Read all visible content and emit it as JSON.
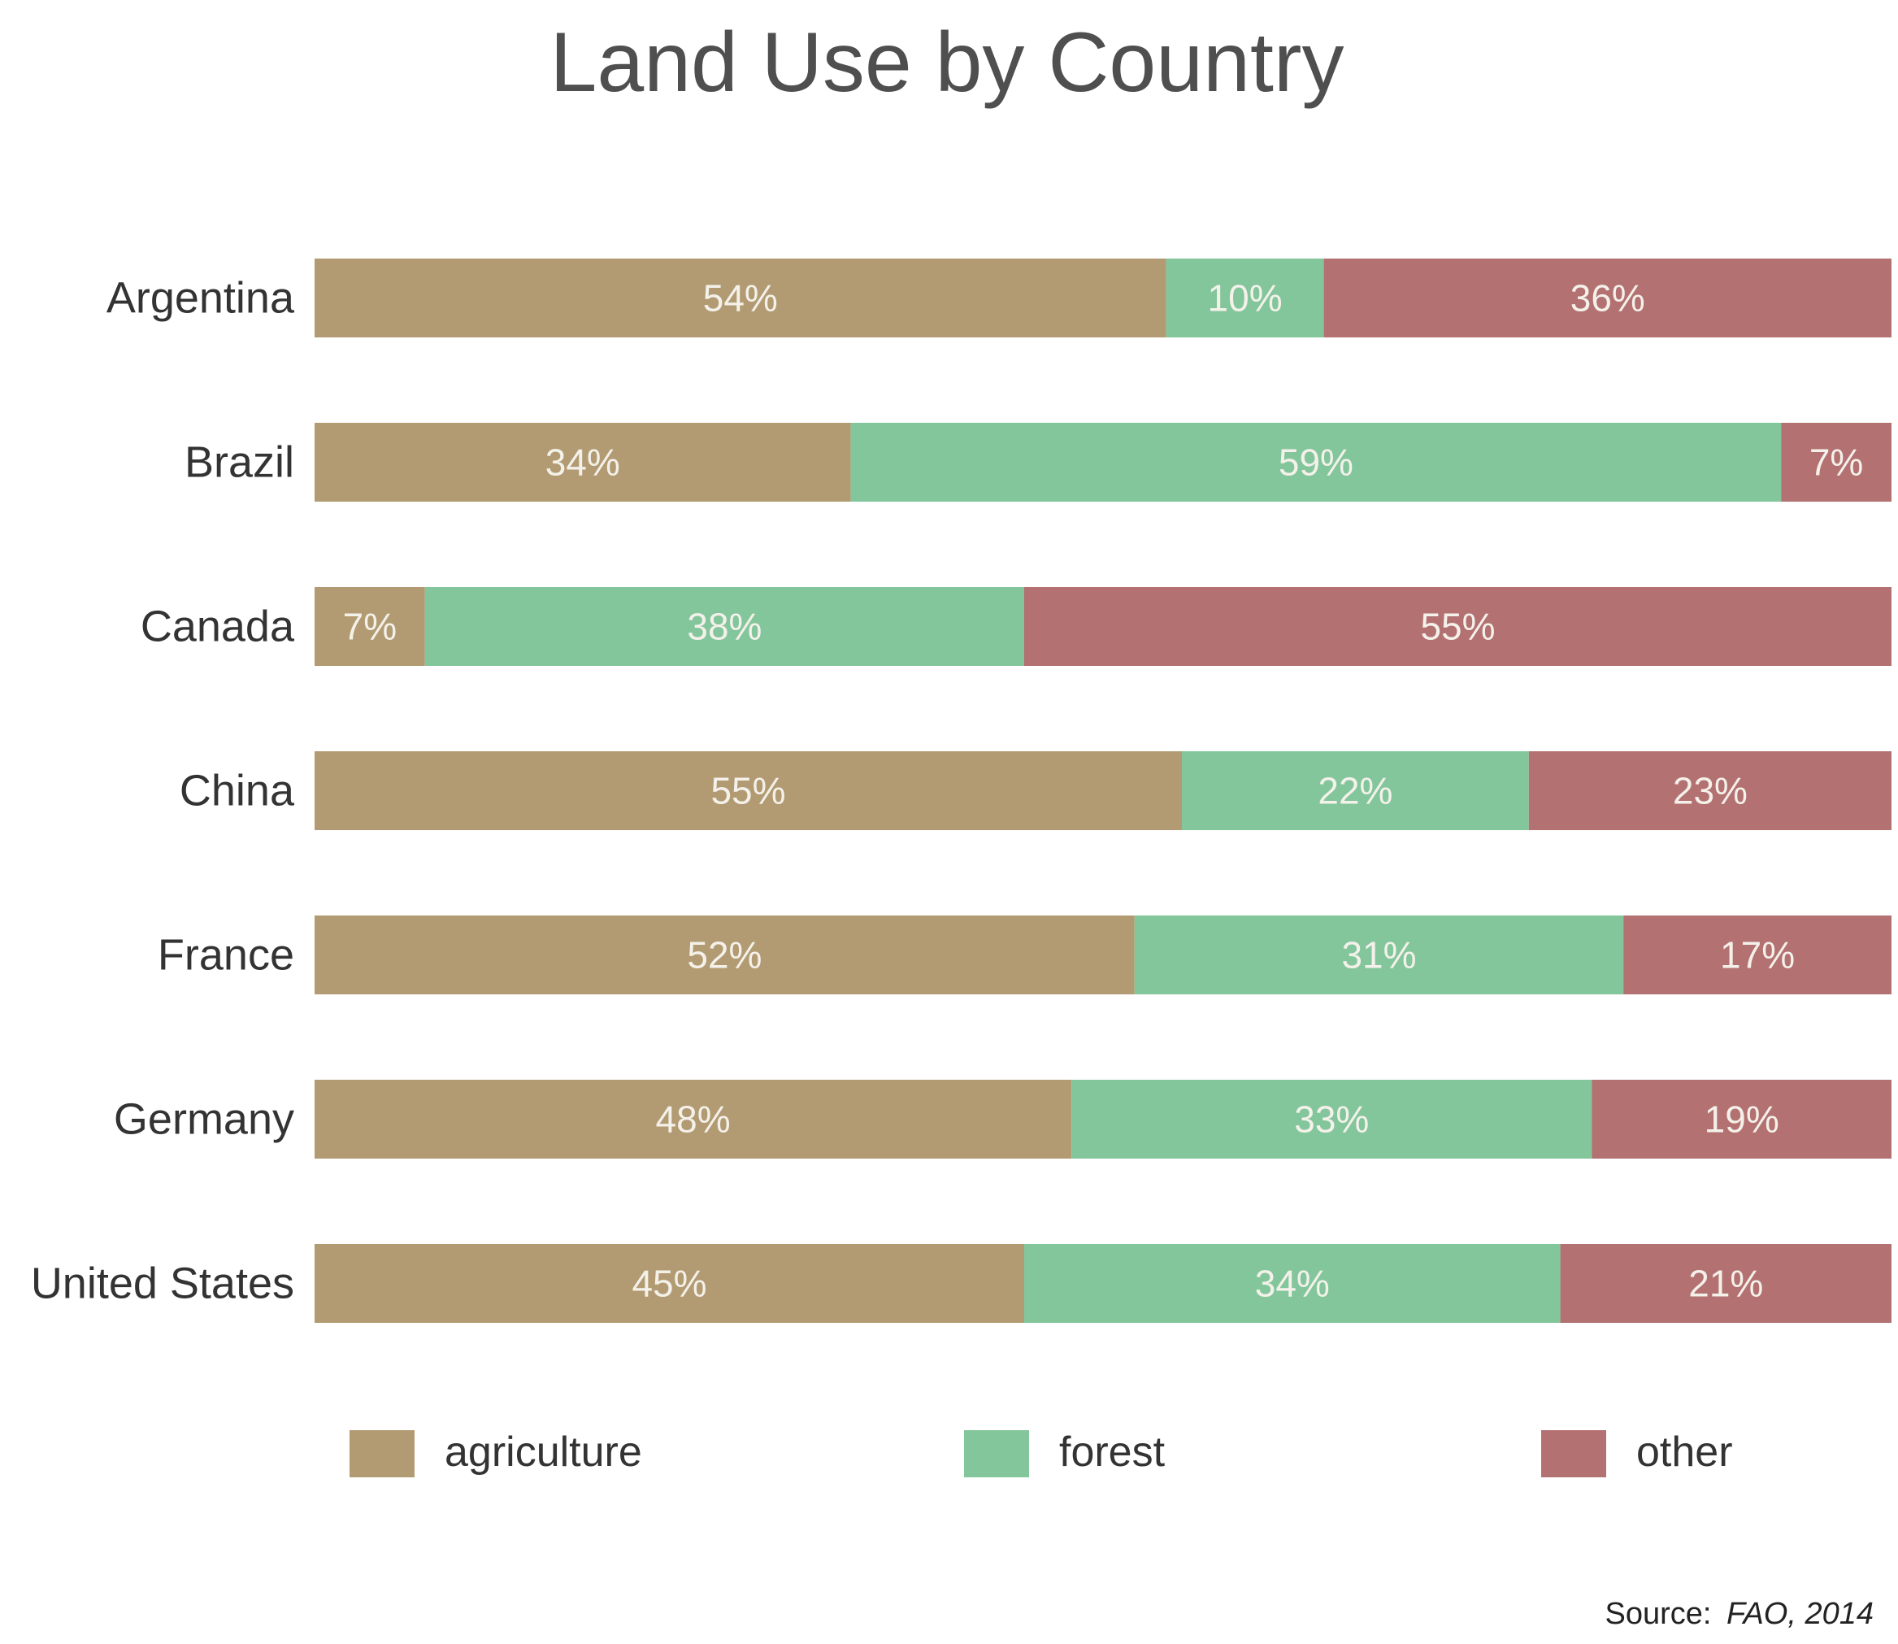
{
  "chart_data": {
    "type": "bar",
    "orientation": "horizontal",
    "stacked": true,
    "title": "Land Use by Country",
    "categories": [
      "Argentina",
      "Brazil",
      "Canada",
      "China",
      "France",
      "Germany",
      "United States"
    ],
    "series": [
      {
        "name": "agriculture",
        "color": "#b29b72",
        "values": [
          54,
          34,
          7,
          55,
          52,
          48,
          45
        ],
        "labels": [
          "54%",
          "34%",
          "7%",
          "55%",
          "52%",
          "48%",
          "45%"
        ]
      },
      {
        "name": "forest",
        "color": "#83c69b",
        "values": [
          10,
          59,
          38,
          22,
          31,
          33,
          34
        ],
        "labels": [
          "10%",
          "59%",
          "38%",
          "22%",
          "31%",
          "33%",
          "34%"
        ]
      },
      {
        "name": "other",
        "color": "#b37171",
        "values": [
          36,
          7,
          55,
          23,
          17,
          19,
          21
        ],
        "labels": [
          "36%",
          "7%",
          "55%",
          "23%",
          "17%",
          "19%",
          "21%"
        ]
      }
    ],
    "xlim": [
      0,
      100
    ],
    "grid": false,
    "legend_position": "bottom",
    "source_prefix": "Source:",
    "source_text": "FAO, 2014"
  }
}
